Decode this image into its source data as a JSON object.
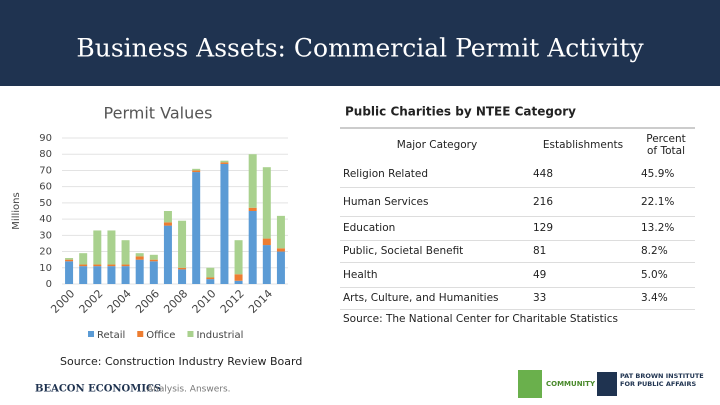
{
  "title": "Business Assets: Commercial Permit Activity",
  "chart_data": {
    "type": "bar",
    "stacked": true,
    "title": "Permit Values",
    "ylabel": "Millions",
    "categories": [
      "2000",
      null,
      "2002",
      null,
      "2004",
      null,
      "2006",
      null,
      "2008",
      null,
      "2010",
      null,
      "2012",
      null,
      "2014",
      null
    ],
    "series": [
      {
        "name": "Retail",
        "color": "#5b9bd5",
        "values": [
          14,
          11,
          11,
          11,
          11,
          15,
          14,
          36,
          9,
          69,
          3,
          74,
          2,
          45,
          24,
          20
        ]
      },
      {
        "name": "Office",
        "color": "#ed7d31",
        "values": [
          1,
          1,
          1,
          1,
          1,
          2,
          1,
          2,
          1,
          1,
          1,
          1,
          4,
          2,
          4,
          2
        ]
      },
      {
        "name": "Industrial",
        "color": "#a9d18e",
        "values": [
          1,
          7,
          21,
          21,
          15,
          2,
          3,
          7,
          29,
          1,
          6,
          1,
          21,
          33,
          44,
          20
        ]
      }
    ],
    "ylim": [
      0,
      90
    ],
    "yticks": [
      0,
      10,
      20,
      30,
      40,
      50,
      60,
      70,
      80,
      90
    ],
    "grid": true,
    "legend": "bottom",
    "source": "Source: Construction Industry Review Board"
  },
  "table": {
    "title": "Public Charities by NTEE Category",
    "columns": [
      "Major Category",
      "Establishments",
      "Percent of Total"
    ],
    "rows": [
      [
        "Religion Related",
        "448",
        "45.9%"
      ],
      [
        "Human Services",
        "216",
        "22.1%"
      ],
      [
        "Education",
        "129",
        "13.2%"
      ],
      [
        "Public, Societal Benefit",
        "81",
        "8.2%"
      ],
      [
        "Health",
        "49",
        "5.0%"
      ],
      [
        "Arts, Culture, and Humanities",
        "33",
        "3.4%"
      ]
    ],
    "source": "Source: The National Center for Charitable Statistics"
  },
  "footer": {
    "brand": "BEACON ECONOMICS",
    "tagline": "Analysis. Answers.",
    "logo1": "COMMUNITY",
    "logo2": "PAT BROWN INSTITUTE FOR PUBLIC AFFAIRS"
  }
}
